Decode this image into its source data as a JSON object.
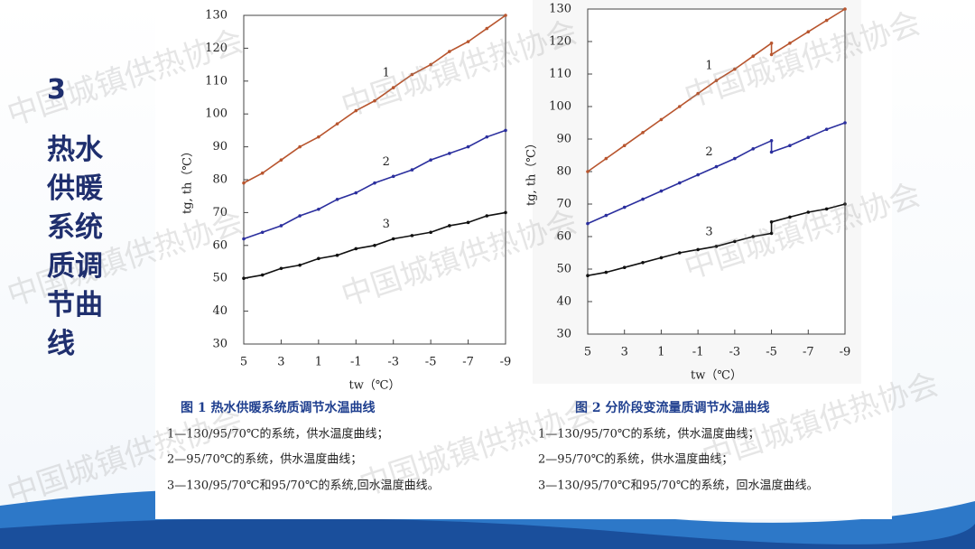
{
  "slide_title": {
    "number": "3",
    "text": "热水供暖系统质调节曲线"
  },
  "watermark": "中国城镇供热协会",
  "chart_data": [
    {
      "type": "line",
      "title": "图 1 热水供暖系统质调节水温曲线",
      "x_label": "tw（℃）",
      "y_label": "tg, th（℃）",
      "x": [
        5,
        4,
        3,
        2,
        1,
        0,
        -1,
        -2,
        -3,
        -4,
        -5,
        -6,
        -7,
        -8,
        -9
      ],
      "xlim": [
        5,
        -9
      ],
      "xticks": [
        5,
        3,
        1,
        -1,
        -3,
        -5,
        -7,
        -9
      ],
      "ylim": [
        30,
        130
      ],
      "yticks": [
        30,
        40,
        50,
        60,
        70,
        80,
        90,
        100,
        110,
        120,
        130
      ],
      "grid": false,
      "series": [
        {
          "name": "1",
          "color": "#b8552e",
          "values": [
            79,
            82,
            86,
            90,
            93,
            97,
            101,
            104,
            108,
            112,
            115,
            119,
            122,
            126,
            130
          ]
        },
        {
          "name": "2",
          "color": "#2b2f9e",
          "values": [
            62,
            64,
            66,
            69,
            71,
            74,
            76,
            79,
            81,
            83,
            86,
            88,
            90,
            93,
            95
          ]
        },
        {
          "name": "3",
          "color": "#111111",
          "values": [
            50,
            51,
            53,
            54,
            56,
            57,
            59,
            60,
            62,
            63,
            64,
            66,
            67,
            69,
            70
          ]
        }
      ],
      "notes": [
        "1—130/95/70℃的系统，供水温度曲线；",
        "2—95/70℃的系统，供水温度曲线；",
        "3—130/95/70℃和95/70℃的系统,回水温度曲线。"
      ]
    },
    {
      "type": "line",
      "title": "图 2 分阶段变流量质调节水温曲线",
      "x_label": "tw（℃）",
      "y_label": "tg, th（℃）",
      "x": [
        5,
        4,
        3,
        2,
        1,
        0,
        -1,
        -2,
        -3,
        -4,
        -5,
        -5,
        -6,
        -7,
        -8,
        -9
      ],
      "xlim": [
        5,
        -9
      ],
      "xticks": [
        5,
        3,
        1,
        -1,
        -3,
        -5,
        -7,
        -9
      ],
      "ylim": [
        30,
        130
      ],
      "yticks": [
        30,
        40,
        50,
        60,
        70,
        80,
        90,
        100,
        110,
        120,
        130
      ],
      "grid": false,
      "series": [
        {
          "name": "1",
          "color": "#b8552e",
          "values": [
            80,
            84,
            88,
            92,
            96,
            100,
            104,
            108,
            111.5,
            115.5,
            119.5,
            116,
            119.5,
            123,
            126.5,
            130
          ]
        },
        {
          "name": "2",
          "color": "#2b2f9e",
          "values": [
            64,
            66.5,
            69,
            71.5,
            74,
            76.5,
            79,
            81.5,
            84,
            87,
            89.5,
            86,
            88,
            90.5,
            93,
            95
          ]
        },
        {
          "name": "3",
          "color": "#111111",
          "values": [
            48,
            49,
            50.5,
            52,
            53.5,
            55,
            56,
            57,
            58.5,
            60,
            61,
            64.5,
            66,
            67.5,
            68.5,
            70
          ]
        }
      ],
      "notes": [
        "1—130/95/70℃的系统，供水温度曲线；",
        "2—95/70℃的系统，供水温度曲线；",
        "3—130/95/70℃和95/70℃的系统，回水温度曲线。"
      ]
    }
  ]
}
